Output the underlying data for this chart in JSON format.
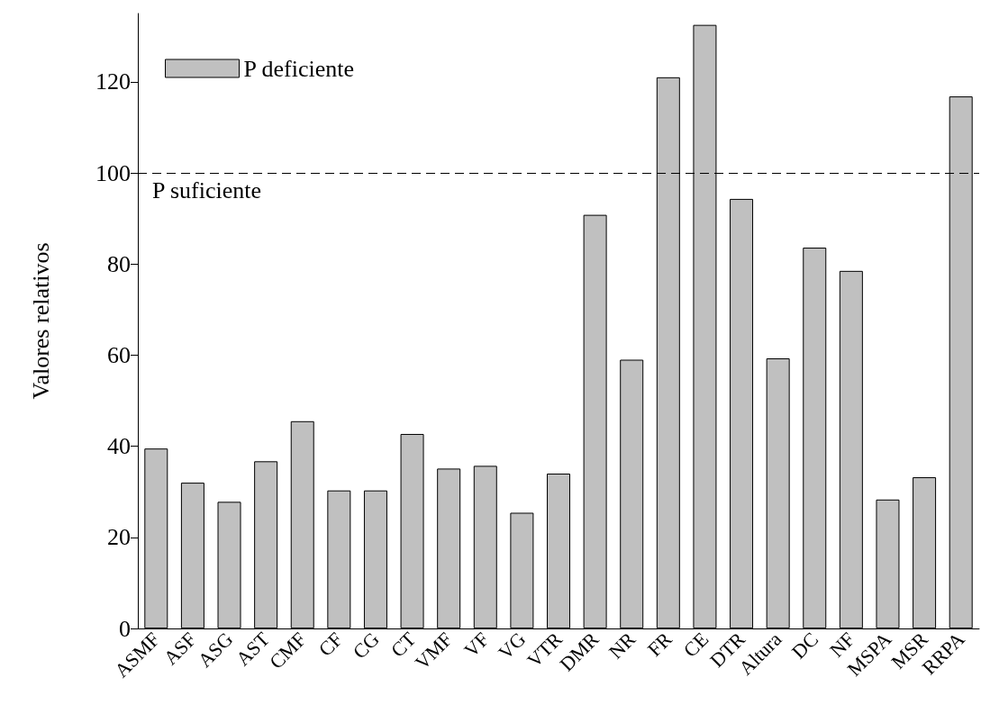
{
  "chart_data": {
    "type": "bar",
    "ylabel": "Valores relativos",
    "categories": [
      "ASMF",
      "ASF",
      "ASG",
      "AST",
      "CMF",
      "CF",
      "CG",
      "CT",
      "VMF",
      "VF",
      "VG",
      "VTR",
      "DMR",
      "NR",
      "FR",
      "CE",
      "DTR",
      "Altura",
      "DC",
      "NF",
      "MSPA",
      "MSR",
      "RRPA"
    ],
    "series": [
      {
        "name": "P deficiente",
        "color": "#c0c0c0",
        "values": [
          39.5,
          32,
          27.8,
          36.7,
          45.5,
          30.3,
          30.3,
          42.7,
          35.1,
          35.7,
          25.4,
          34,
          90.8,
          59,
          121,
          132.5,
          94.3,
          59.3,
          83.6,
          78.5,
          28.3,
          33.2,
          116.8
        ]
      }
    ],
    "ylim": [
      0,
      135
    ],
    "yticks": [
      0,
      20,
      40,
      60,
      80,
      100,
      120
    ],
    "ref_lines": [
      {
        "axis": "y",
        "value": 100,
        "label": "P suficiente",
        "color": "#000000",
        "line_style": "dashed"
      }
    ],
    "legend": "top left",
    "grid": false
  }
}
